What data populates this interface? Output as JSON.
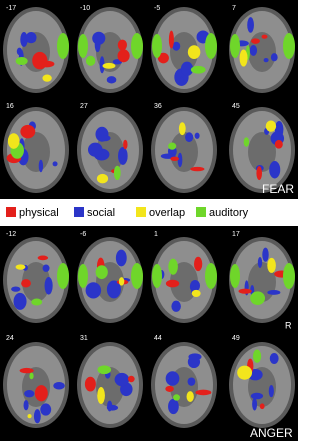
{
  "panels": [
    {
      "label": "FEAR",
      "slices": [
        "-17",
        "-10",
        "-5",
        "7",
        "16",
        "27",
        "36",
        "45"
      ]
    },
    {
      "label": "ANGER",
      "slices": [
        "-12",
        "-6",
        "1",
        "17",
        "24",
        "31",
        "44",
        "49"
      ],
      "orientation": "R"
    }
  ],
  "legend": [
    {
      "label": "physical",
      "color": "#e3201b"
    },
    {
      "label": "social",
      "color": "#2b35c8"
    },
    {
      "label": "overlap",
      "color": "#f2e51c"
    },
    {
      "label": "auditory",
      "color": "#6fd62a"
    }
  ]
}
